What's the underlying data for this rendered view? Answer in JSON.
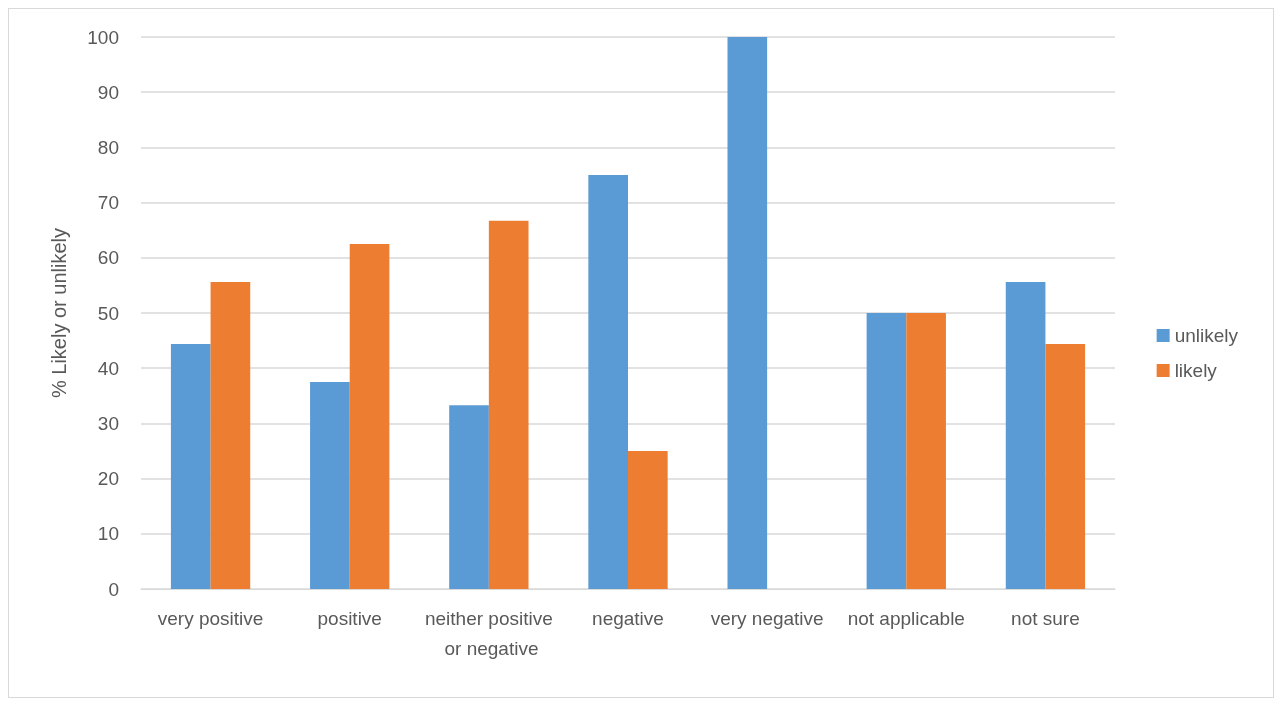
{
  "chart_data": {
    "type": "bar",
    "ylabel": "% Likely or unlikely",
    "categories": [
      "very positive",
      "positive",
      "neither positive or negative",
      "negative",
      "very negative",
      "not applicable",
      "not sure"
    ],
    "series": [
      {
        "name": "unlikely",
        "color": "#5b9bd5",
        "values": [
          44.4,
          37.5,
          33.3,
          75,
          100,
          50,
          55.6
        ]
      },
      {
        "name": "likely",
        "color": "#ed7d31",
        "values": [
          55.6,
          62.5,
          66.7,
          25,
          0,
          50,
          44.4
        ]
      }
    ],
    "ylim": [
      0,
      100
    ],
    "yticks": [
      0,
      10,
      20,
      30,
      40,
      50,
      60,
      70,
      80,
      90,
      100
    ],
    "grid": "y",
    "legend": "right"
  }
}
